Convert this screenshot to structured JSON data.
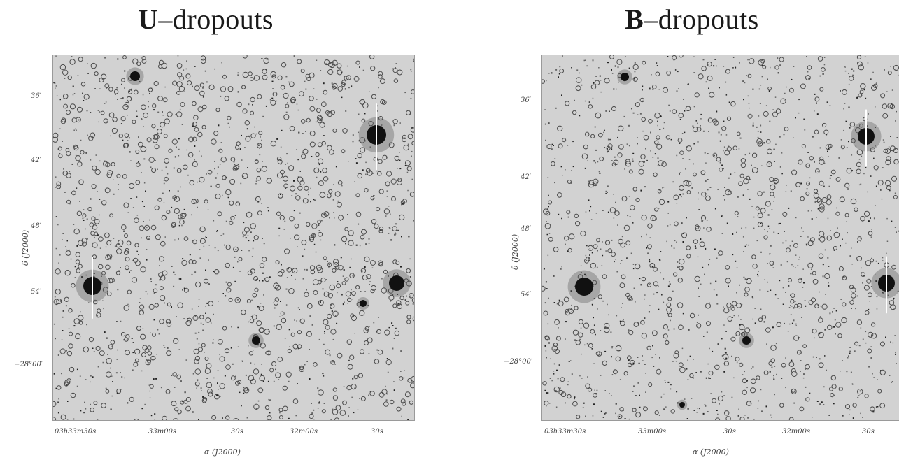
{
  "panels": [
    {
      "title_bold": "U",
      "title_rest": "–dropouts",
      "dec_ticks": [
        "36′",
        "42′",
        "48′",
        "54′",
        "−28°00′"
      ],
      "ra_ticks": [
        "03h33m30s",
        "33m00s",
        "30s",
        "32m00s",
        "30s"
      ],
      "xlabel": "α (J2000)",
      "ylabel": "δ (J2000)"
    },
    {
      "title_bold": "B",
      "title_rest": "–dropouts",
      "dec_ticks": [
        "36′",
        "42′",
        "48′",
        "54′",
        "−28°00′"
      ],
      "ra_ticks": [
        "03h33m30s",
        "33m00s",
        "30s",
        "32m00s",
        "30s"
      ],
      "xlabel": "α (J2000)",
      "ylabel": "δ (J2000)"
    }
  ],
  "colors": {
    "sky": "#d2d2d2",
    "marker": "#4a4a4a",
    "star": "#111111"
  }
}
